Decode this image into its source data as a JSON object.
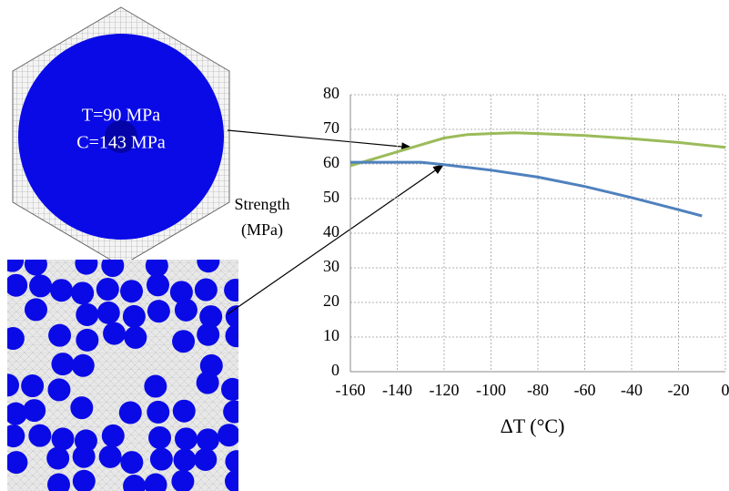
{
  "chart_data": {
    "type": "line",
    "ylabel": [
      "Strength",
      "(MPa)"
    ],
    "xlabel": "ΔT  (°C)",
    "annotations": [
      "T=90 MPa",
      "C=143 MPa"
    ],
    "xlim": [
      -160,
      0
    ],
    "ylim": [
      0,
      80
    ],
    "xticks": [
      -160,
      -140,
      -120,
      -100,
      -80,
      -60,
      -40,
      -20,
      0
    ],
    "yticks": [
      0,
      10,
      20,
      30,
      40,
      50,
      60,
      70,
      80
    ],
    "grid": true,
    "series": [
      {
        "color": "#9bbb59",
        "x": [
          -160,
          -150,
          -140,
          -130,
          -120,
          -110,
          -100,
          -90,
          -80,
          -60,
          -40,
          -20,
          0
        ],
        "values": [
          59.5,
          61.5,
          63.5,
          65.5,
          67.5,
          68.5,
          68.8,
          69,
          68.8,
          68.2,
          67.3,
          66.2,
          64.8
        ]
      },
      {
        "color": "#4f81bd",
        "x": [
          -160,
          -140,
          -130,
          -120,
          -110,
          -100,
          -80,
          -60,
          -40,
          -20,
          -10
        ],
        "values": [
          60.5,
          60.5,
          60.5,
          59.8,
          59,
          58.2,
          56.2,
          53.5,
          50.3,
          46.8,
          45
        ]
      }
    ]
  }
}
